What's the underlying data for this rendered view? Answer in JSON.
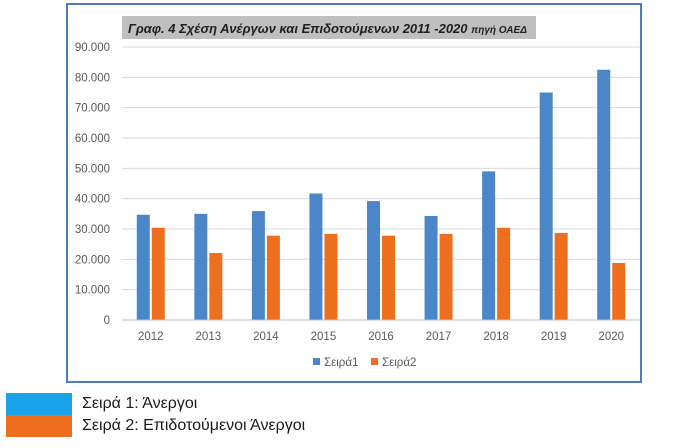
{
  "chart_data": {
    "type": "bar",
    "title": "Γραφ. 4 Σχέση Ανέργων και Επιδοτούμενων 2011 -2020",
    "subtitle": "πηγή ΟΑΕΔ",
    "categories": [
      "2012",
      "2013",
      "2014",
      "2015",
      "2016",
      "2017",
      "2018",
      "2019",
      "2020"
    ],
    "series": [
      {
        "name": "Σειρά1",
        "color": "#4a86c8",
        "values": [
          34700,
          35000,
          35900,
          41700,
          39200,
          34300,
          49000,
          75000,
          82500
        ]
      },
      {
        "name": "Σειρά2",
        "color": "#ee6f1e",
        "values": [
          30400,
          22100,
          27800,
          28400,
          27800,
          28400,
          30400,
          28700,
          18800
        ]
      }
    ],
    "ylim": [
      0,
      90000
    ],
    "yticks": [
      "0",
      "10.000",
      "20.000",
      "30.000",
      "40.000",
      "50.000",
      "60.000",
      "70.000",
      "80.000",
      "90.000"
    ],
    "grid": true,
    "legend_position": "bottom"
  },
  "explanatory_legend": [
    {
      "color": "#1aa3e8",
      "label": "Σειρά 1: Άνεργοι"
    },
    {
      "color": "#ee6f1e",
      "label": "Σειρά 2: Επιδοτούμενοι Άνεργοι"
    }
  ]
}
